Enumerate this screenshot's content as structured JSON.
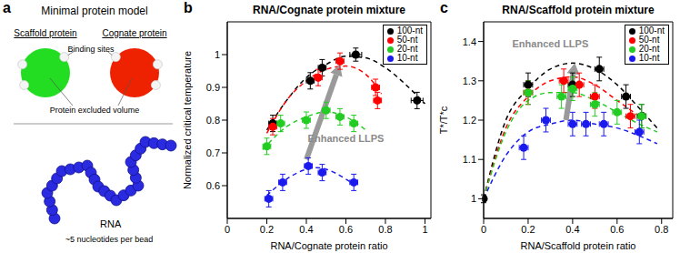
{
  "panel_a": {
    "panel": "a",
    "title": "Minimal protein model",
    "scaffold": "Scaffold protein",
    "cognate": "Cognate protein",
    "binding_sites": "Binding sites",
    "excluded_volume": "Protein excluded volume",
    "rna": "RNA",
    "bead_note": "~5 nucleotides per bead"
  },
  "chart_data": [
    {
      "panel": "b",
      "type": "scatter",
      "title": "RNA/Cognate protein mixture",
      "x_label": "RNA/Cognate protein ratio",
      "y_label": "Normalized critical temperature",
      "xlim": [
        0,
        1.03
      ],
      "xticks": [
        0,
        0.2,
        0.4,
        0.6,
        0.8,
        1
      ],
      "ylim": [
        0.5,
        1.1
      ],
      "yticks": [
        0.6,
        0.7,
        0.8,
        0.9,
        1
      ],
      "legend": "upper right",
      "series": [
        {
          "name": "100-nt",
          "color": "#000000",
          "marker": "circle",
          "x": [
            0.23,
            0.42,
            0.48,
            0.65,
            0.96
          ],
          "values": [
            0.79,
            0.92,
            0.96,
            1.0,
            0.86
          ],
          "x_errors": [
            0.02,
            0.02,
            0.02,
            0.03,
            0.03
          ],
          "y_errors": [
            0.025,
            0.025,
            0.025,
            0.02,
            0.025
          ]
        },
        {
          "name": "50-nt",
          "color": "#ff0000",
          "marker": "circle",
          "x": [
            0.23,
            0.46,
            0.57,
            0.75,
            0.76
          ],
          "values": [
            0.78,
            0.93,
            0.98,
            0.9,
            0.86
          ],
          "x_errors": [
            0.02,
            0.02,
            0.02,
            0.02,
            0.02
          ],
          "y_errors": [
            0.025,
            0.025,
            0.025,
            0.025,
            0.025
          ]
        },
        {
          "name": "20-nt",
          "color": "#22cc22",
          "marker": "circle",
          "x": [
            0.2,
            0.27,
            0.4,
            0.5,
            0.57,
            0.64
          ],
          "values": [
            0.72,
            0.79,
            0.8,
            0.83,
            0.81,
            0.79
          ],
          "x_errors": [
            0.02,
            0.02,
            0.02,
            0.02,
            0.02,
            0.02
          ],
          "y_errors": [
            0.025,
            0.025,
            0.025,
            0.025,
            0.025,
            0.025
          ]
        },
        {
          "name": "10-nt",
          "color": "#1a1aee",
          "marker": "circle",
          "x": [
            0.21,
            0.28,
            0.41,
            0.48,
            0.64
          ],
          "values": [
            0.56,
            0.61,
            0.66,
            0.64,
            0.61
          ],
          "x_errors": [
            0.02,
            0.02,
            0.02,
            0.02,
            0.02
          ],
          "y_errors": [
            0.025,
            0.025,
            0.025,
            0.025,
            0.025
          ]
        }
      ],
      "fits": [
        {
          "color": "#000000",
          "line_style": "dashed",
          "x": [
            0.2,
            0.3,
            0.4,
            0.5,
            0.6,
            0.7,
            0.8,
            0.9,
            1.0
          ],
          "values": [
            0.77,
            0.86,
            0.93,
            0.97,
            0.995,
            0.99,
            0.96,
            0.91,
            0.85
          ]
        },
        {
          "color": "#ff0000",
          "line_style": "dashed",
          "x": [
            0.2,
            0.3,
            0.4,
            0.5,
            0.6,
            0.7,
            0.78
          ],
          "values": [
            0.76,
            0.86,
            0.92,
            0.955,
            0.965,
            0.94,
            0.88
          ]
        },
        {
          "color": "#22cc22",
          "line_style": "dashed",
          "x": [
            0.18,
            0.3,
            0.4,
            0.5,
            0.6,
            0.7
          ],
          "values": [
            0.71,
            0.78,
            0.81,
            0.825,
            0.81,
            0.77
          ]
        },
        {
          "color": "#1a1aee",
          "line_style": "dashed",
          "x": [
            0.2,
            0.3,
            0.4,
            0.45,
            0.5,
            0.6,
            0.65
          ],
          "values": [
            0.57,
            0.62,
            0.65,
            0.655,
            0.65,
            0.62,
            0.6
          ]
        }
      ],
      "annotations": [
        {
          "text": "Enhanced LLPS",
          "x": 0.6,
          "y": 0.745,
          "color": "#8a8a8a"
        }
      ],
      "arrows": [
        {
          "x": [
            0.4,
            0.57
          ],
          "y": [
            0.68,
            0.97
          ],
          "color": "#9a9a9a"
        }
      ]
    },
    {
      "panel": "c",
      "type": "scatter",
      "title": "RNA/Scaffold protein mixture",
      "x_label": "RNA/Scaffold protein ratio",
      "y_label": "T*/T*c",
      "xlim": [
        0,
        0.85
      ],
      "xticks": [
        0,
        0.2,
        0.4,
        0.6,
        0.8
      ],
      "ylim": [
        0.95,
        1.45
      ],
      "yticks": [
        1,
        1.1,
        1.2,
        1.3,
        1.4
      ],
      "legend": "upper right",
      "series": [
        {
          "name": "100-nt",
          "color": "#000000",
          "marker": "circle",
          "x": [
            0,
            0.2,
            0.4,
            0.52,
            0.64,
            0.71
          ],
          "values": [
            1.0,
            1.29,
            1.29,
            1.33,
            1.26,
            1.21
          ],
          "x_errors": [
            0.005,
            0.02,
            0.02,
            0.02,
            0.02,
            0.02
          ],
          "y_errors": [
            0.01,
            0.03,
            0.03,
            0.03,
            0.03,
            0.03
          ]
        },
        {
          "name": "50-nt",
          "color": "#ff0000",
          "marker": "circle",
          "x": [
            0.2,
            0.36,
            0.43,
            0.5,
            0.66
          ],
          "values": [
            1.27,
            1.3,
            1.29,
            1.26,
            1.21
          ],
          "x_errors": [
            0.02,
            0.02,
            0.02,
            0.02,
            0.02
          ],
          "y_errors": [
            0.03,
            0.03,
            0.03,
            0.03,
            0.03
          ]
        },
        {
          "name": "20-nt",
          "color": "#22cc22",
          "marker": "circle",
          "x": [
            0.2,
            0.35,
            0.4,
            0.5,
            0.6,
            0.71
          ],
          "values": [
            1.27,
            1.26,
            1.28,
            1.24,
            1.22,
            1.21
          ],
          "x_errors": [
            0.02,
            0.02,
            0.02,
            0.02,
            0.02,
            0.02
          ],
          "y_errors": [
            0.03,
            0.03,
            0.03,
            0.03,
            0.03,
            0.03
          ]
        },
        {
          "name": "10-nt",
          "color": "#1a1aee",
          "marker": "circle",
          "x": [
            0.18,
            0.28,
            0.4,
            0.46,
            0.54,
            0.7
          ],
          "values": [
            1.13,
            1.2,
            1.19,
            1.19,
            1.19,
            1.17
          ],
          "x_errors": [
            0.02,
            0.02,
            0.02,
            0.02,
            0.02,
            0.02
          ],
          "y_errors": [
            0.03,
            0.03,
            0.03,
            0.03,
            0.03,
            0.03
          ]
        }
      ],
      "fits": [
        {
          "color": "#000000",
          "line_style": "dashed",
          "x": [
            0,
            0.1,
            0.2,
            0.3,
            0.4,
            0.5,
            0.6,
            0.7,
            0.78
          ],
          "values": [
            1.0,
            1.2,
            1.28,
            1.33,
            1.345,
            1.33,
            1.29,
            1.23,
            1.18
          ]
        },
        {
          "color": "#ff0000",
          "line_style": "dashed",
          "x": [
            0,
            0.1,
            0.2,
            0.3,
            0.4,
            0.5,
            0.6,
            0.7
          ],
          "values": [
            1.0,
            1.18,
            1.26,
            1.3,
            1.31,
            1.29,
            1.25,
            1.21
          ]
        },
        {
          "color": "#22cc22",
          "line_style": "dashed",
          "x": [
            0,
            0.1,
            0.2,
            0.3,
            0.4,
            0.5,
            0.6,
            0.7,
            0.78
          ],
          "values": [
            1.0,
            1.17,
            1.25,
            1.27,
            1.27,
            1.25,
            1.22,
            1.19,
            1.17
          ]
        },
        {
          "color": "#1a1aee",
          "line_style": "dashed",
          "x": [
            0,
            0.1,
            0.2,
            0.3,
            0.4,
            0.5,
            0.6,
            0.7,
            0.78
          ],
          "values": [
            1.0,
            1.11,
            1.17,
            1.19,
            1.2,
            1.19,
            1.18,
            1.16,
            1.14
          ]
        }
      ],
      "annotations": [
        {
          "text": "Enhanced LLPS",
          "x": 0.3,
          "y": 1.395,
          "color": "#8a8a8a"
        }
      ],
      "arrows": [
        {
          "x": [
            0.37,
            0.41
          ],
          "y": [
            1.2,
            1.345
          ],
          "color": "#9a9a9a"
        }
      ]
    }
  ]
}
